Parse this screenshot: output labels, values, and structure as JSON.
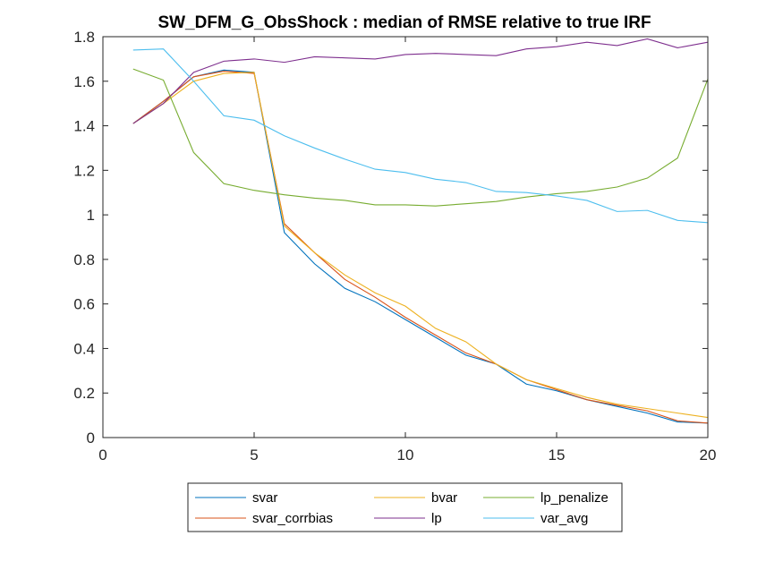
{
  "chart_data": {
    "type": "line",
    "title": "SW_DFM_G_ObsShock : median of RMSE relative to true IRF",
    "xlabel": "",
    "ylabel": "",
    "xlim": [
      0,
      20
    ],
    "ylim": [
      0,
      1.8
    ],
    "xticks": [
      0,
      5,
      10,
      15,
      20
    ],
    "yticks": [
      0,
      0.2,
      0.4,
      0.6,
      0.8,
      1,
      1.2,
      1.4,
      1.6,
      1.8
    ],
    "xtick_labels": [
      "0",
      "5",
      "10",
      "15",
      "20"
    ],
    "ytick_labels": [
      "0",
      "0.2",
      "0.4",
      "0.6",
      "0.8",
      "1",
      "1.2",
      "1.4",
      "1.6",
      "1.8"
    ],
    "grid": false,
    "legend_position": "bottom-outside",
    "x": [
      1,
      2,
      3,
      4,
      5,
      6,
      7,
      8,
      9,
      10,
      11,
      12,
      13,
      14,
      15,
      16,
      17,
      18,
      19,
      20
    ],
    "series": [
      {
        "name": "svar",
        "color": "#0072BD",
        "values": [
          1.41,
          1.51,
          1.62,
          1.65,
          1.64,
          0.92,
          0.78,
          0.67,
          0.61,
          0.53,
          0.45,
          0.37,
          0.33,
          0.24,
          0.21,
          0.17,
          0.14,
          0.11,
          0.07,
          0.065
        ]
      },
      {
        "name": "svar_corrbias",
        "color": "#D95319",
        "values": [
          1.41,
          1.51,
          1.62,
          1.645,
          1.635,
          0.96,
          0.83,
          0.71,
          0.63,
          0.54,
          0.46,
          0.38,
          0.33,
          0.26,
          0.215,
          0.17,
          0.145,
          0.12,
          0.075,
          0.065
        ]
      },
      {
        "name": "bvar",
        "color": "#EDB120",
        "values": [
          1.41,
          1.5,
          1.6,
          1.635,
          1.64,
          0.95,
          0.83,
          0.73,
          0.65,
          0.59,
          0.49,
          0.43,
          0.33,
          0.26,
          0.22,
          0.18,
          0.15,
          0.13,
          0.11,
          0.09
        ]
      },
      {
        "name": "lp",
        "color": "#7E2F8E",
        "values": [
          1.41,
          1.5,
          1.64,
          1.69,
          1.7,
          1.685,
          1.71,
          1.705,
          1.7,
          1.72,
          1.725,
          1.72,
          1.715,
          1.745,
          1.755,
          1.775,
          1.76,
          1.79,
          1.75,
          1.775
        ]
      },
      {
        "name": "lp_penalize",
        "color": "#77AC30",
        "values": [
          1.655,
          1.605,
          1.28,
          1.14,
          1.11,
          1.09,
          1.075,
          1.065,
          1.045,
          1.045,
          1.04,
          1.05,
          1.06,
          1.08,
          1.095,
          1.105,
          1.125,
          1.165,
          1.255,
          1.61
        ]
      },
      {
        "name": "var_avg",
        "color": "#4DBEEE",
        "values": [
          1.74,
          1.745,
          1.6,
          1.445,
          1.425,
          1.355,
          1.3,
          1.25,
          1.205,
          1.19,
          1.16,
          1.145,
          1.105,
          1.1,
          1.085,
          1.065,
          1.015,
          1.02,
          0.975,
          0.965
        ]
      }
    ]
  }
}
